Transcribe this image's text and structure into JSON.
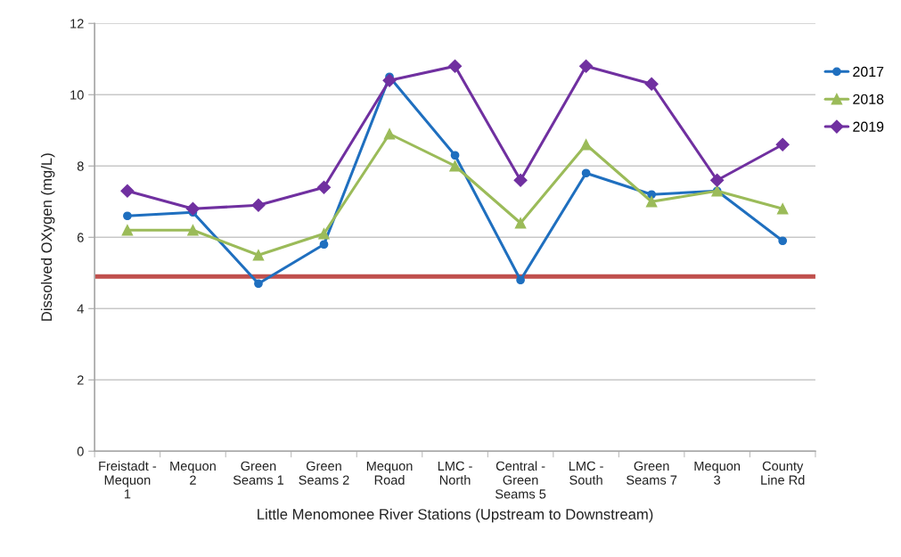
{
  "chart_data": {
    "type": "line",
    "xlabel": "Little Menomonee River Stations (Upstream to Downstream)",
    "ylabel": "Dissolved OXygen (mg/L)",
    "categories": [
      "Freistadt -\nMequon\n1",
      "Mequon\n2",
      "Green\nSeams 1",
      "Green\nSeams 2",
      "Mequon\nRoad",
      "LMC -\nNorth",
      "Central -\nGreen\nSeams 5",
      "LMC -\nSouth",
      "Green\nSeams 7",
      "Mequon\n3",
      "County\nLine Rd"
    ],
    "series": [
      {
        "name": "2017",
        "color": "#1f6fbf",
        "marker": "circle",
        "values": [
          6.6,
          6.7,
          4.7,
          5.8,
          10.5,
          8.3,
          4.8,
          7.8,
          7.2,
          7.3,
          5.9
        ]
      },
      {
        "name": "2018",
        "color": "#9bbb59",
        "marker": "triangle",
        "values": [
          6.2,
          6.2,
          5.5,
          6.1,
          8.9,
          8.0,
          6.4,
          8.6,
          7.0,
          7.3,
          6.8
        ]
      },
      {
        "name": "2019",
        "color": "#7030a0",
        "marker": "diamond",
        "values": [
          7.3,
          6.8,
          6.9,
          7.4,
          10.4,
          10.8,
          7.6,
          10.8,
          10.3,
          7.6,
          8.6
        ]
      }
    ],
    "ylim": [
      0,
      12
    ],
    "yticks": [
      0,
      2,
      4,
      6,
      8,
      10,
      12
    ],
    "ref_lines": [
      {
        "axis": "y",
        "value": 4.9,
        "color": "#c0504d",
        "line_style": "solid"
      }
    ],
    "grid": "y",
    "legend": "right",
    "line_style": "solid"
  }
}
